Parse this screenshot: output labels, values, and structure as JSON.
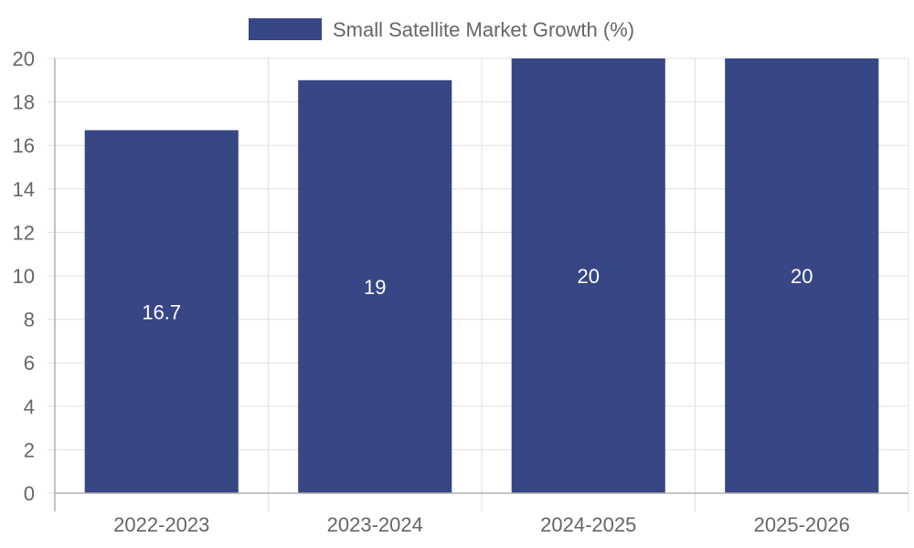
{
  "chart_data": {
    "type": "bar",
    "categories": [
      "2022-2023",
      "2023-2024",
      "2024-2025",
      "2025-2026"
    ],
    "series": [
      {
        "name": "Small Satellite Market Growth (%)",
        "values": [
          16.7,
          19,
          20,
          20
        ]
      }
    ],
    "data_labels": [
      "16.7",
      "19",
      "20",
      "20"
    ],
    "y_ticks": [
      "0",
      "2",
      "4",
      "6",
      "8",
      "10",
      "12",
      "14",
      "16",
      "18",
      "20"
    ],
    "ylim": [
      0,
      20
    ],
    "y_tick_step": 2,
    "grid": true,
    "legend_position": "top-center",
    "colors": {
      "bar": "#374785",
      "grid": "#e0e0e0",
      "axis": "#b0b0b0",
      "text": "#666666"
    }
  }
}
